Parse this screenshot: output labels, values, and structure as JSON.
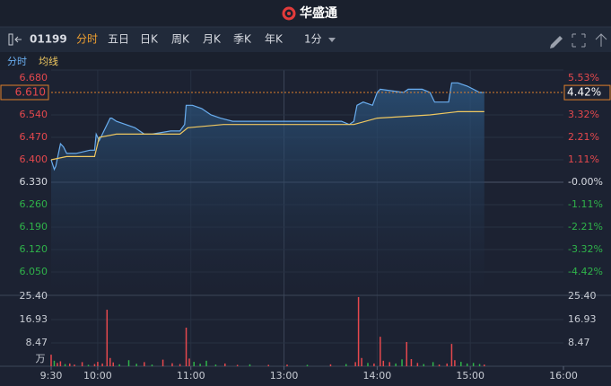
{
  "header": {
    "brand": "华盛通"
  },
  "toolbar": {
    "code": "01199",
    "tabs": [
      "分时",
      "五日",
      "日K",
      "周K",
      "月K",
      "季K",
      "年K"
    ],
    "interval": "1分"
  },
  "chart_data": [
    {
      "type": "line",
      "xlim": [
        0,
        330
      ],
      "ylim": [
        5.98,
        6.68
      ],
      "yticks": [
        {
          "value": 6.68,
          "label": "6.680"
        },
        {
          "value": 6.54,
          "label": "6.540"
        },
        {
          "value": 6.47,
          "label": "6.470"
        },
        {
          "value": 6.4,
          "label": "6.400"
        },
        {
          "value": 6.33,
          "label": "6.330"
        },
        {
          "value": 6.26,
          "label": "6.260"
        },
        {
          "value": 6.19,
          "label": "6.190"
        },
        {
          "value": 6.12,
          "label": "6.120"
        },
        {
          "value": 6.05,
          "label": "6.050"
        }
      ],
      "y2lim": [
        -5.53,
        5.53
      ],
      "y2ticks": [
        {
          "value": 5.53,
          "label": "5.53%"
        },
        {
          "value": 3.32,
          "label": "3.32%"
        },
        {
          "value": 2.21,
          "label": "2.21%"
        },
        {
          "value": 1.11,
          "label": "1.11%"
        },
        {
          "value": 0,
          "label": "-0.00%"
        },
        {
          "value": -1.11,
          "label": "-1.11%"
        },
        {
          "value": -2.21,
          "label": "-2.21%"
        },
        {
          "value": -3.32,
          "label": "-3.32%"
        },
        {
          "value": -4.42,
          "label": "-4.42%"
        }
      ],
      "last": {
        "value": 6.61,
        "label": "6.610"
      },
      "last_change": {
        "value": 4.42,
        "label": "4.42%"
      },
      "grid": true,
      "series": [
        {
          "name": "分时",
          "color": "#6aaef0",
          "x": [
            0,
            2,
            3,
            6,
            8,
            10,
            16,
            25,
            28,
            29,
            31,
            34,
            38,
            39,
            42,
            48,
            54,
            60,
            65,
            77,
            83,
            86,
            87,
            91,
            97,
            103,
            109,
            117,
            135,
            150,
            170,
            187,
            192,
            195,
            197,
            201,
            207,
            210,
            212,
            227,
            230,
            239,
            244,
            247,
            256,
            258,
            262,
            268,
            272,
            276,
            279
          ],
          "values": [
            6.4,
            6.37,
            6.38,
            6.45,
            6.44,
            6.42,
            6.42,
            6.43,
            6.43,
            6.48,
            6.46,
            6.49,
            6.53,
            6.53,
            6.52,
            6.51,
            6.5,
            6.48,
            6.48,
            6.49,
            6.49,
            6.51,
            6.57,
            6.57,
            6.56,
            6.54,
            6.53,
            6.52,
            6.52,
            6.52,
            6.52,
            6.52,
            6.51,
            6.52,
            6.57,
            6.58,
            6.57,
            6.61,
            6.62,
            6.61,
            6.62,
            6.62,
            6.61,
            6.58,
            6.58,
            6.64,
            6.64,
            6.63,
            6.62,
            6.61,
            6.61
          ]
        },
        {
          "name": "均线",
          "color": "#f0c860",
          "x": [
            0,
            10,
            28,
            31,
            42,
            83,
            88,
            111,
            152,
            195,
            210,
            244,
            262,
            279
          ],
          "values": [
            6.4,
            6.41,
            6.41,
            6.47,
            6.48,
            6.48,
            6.5,
            6.51,
            6.51,
            6.51,
            6.53,
            6.54,
            6.55,
            6.55
          ]
        }
      ]
    },
    {
      "type": "bar",
      "unit": "万",
      "xlim": [
        0,
        330
      ],
      "xticks": [
        {
          "value": 0,
          "label": "9:30"
        },
        {
          "value": 30,
          "label": "10:00"
        },
        {
          "value": 90,
          "label": "11:00"
        },
        {
          "value": 150,
          "label": "13:00"
        },
        {
          "value": 210,
          "label": "14:00"
        },
        {
          "value": 270,
          "label": "15:00"
        },
        {
          "value": 330,
          "label": "16:00"
        }
      ],
      "ylim": [
        0,
        25.4
      ],
      "yticks": [
        {
          "value": 25.4,
          "label": "25.40"
        },
        16.93,
        8.47
      ],
      "x": [
        0,
        2,
        4,
        6,
        9,
        12,
        15,
        20,
        24,
        28,
        30,
        33,
        36,
        38,
        40,
        44,
        50,
        55,
        60,
        65,
        72,
        78,
        83,
        87,
        89,
        92,
        96,
        100,
        106,
        112,
        120,
        128,
        140,
        152,
        165,
        180,
        190,
        196,
        198,
        200,
        204,
        208,
        212,
        214,
        218,
        222,
        226,
        229,
        232,
        236,
        240,
        246,
        250,
        255,
        258,
        260,
        264,
        268,
        272,
        276,
        279
      ],
      "values": [
        4.2,
        2,
        1.2,
        1.8,
        0.8,
        1,
        0.6,
        1.5,
        0.5,
        0.8,
        1.6,
        1,
        20.5,
        3,
        1.4,
        0.7,
        2.2,
        0.9,
        1.5,
        0.6,
        2.4,
        1.1,
        0.8,
        14,
        2.8,
        1.6,
        0.9,
        2,
        0.6,
        1,
        0.5,
        0.7,
        0.5,
        0.6,
        0.5,
        0.7,
        0.8,
        1.5,
        25.1,
        3,
        1.2,
        1,
        10.7,
        2,
        1.5,
        1,
        2.5,
        8.8,
        2.6,
        1.2,
        0.8,
        1.5,
        0.6,
        1,
        8.1,
        2.2,
        1.6,
        1,
        1.2,
        0.8,
        0.6
      ],
      "colors": [
        "#e5484d",
        "#2fb34a",
        "#e5484d",
        "#e5484d",
        "#2fb34a",
        "#e5484d",
        "#e5484d",
        "#e5484d",
        "#2fb34a",
        "#e5484d",
        "#e5484d",
        "#e5484d",
        "#e5484d",
        "#e5484d",
        "#e5484d",
        "#2fb34a",
        "#2fb34a",
        "#2fb34a",
        "#e5484d",
        "#2fb34a",
        "#e5484d",
        "#e5484d",
        "#e5484d",
        "#e5484d",
        "#e5484d",
        "#2fb34a",
        "#2fb34a",
        "#2fb34a",
        "#2fb34a",
        "#e5484d",
        "#e5484d",
        "#2fb34a",
        "#e5484d",
        "#e5484d",
        "#2fb34a",
        "#e5484d",
        "#2fb34a",
        "#e5484d",
        "#e5484d",
        "#e5484d",
        "#2fb34a",
        "#e5484d",
        "#e5484d",
        "#e5484d",
        "#e5484d",
        "#2fb34a",
        "#2fb34a",
        "#e5484d",
        "#e5484d",
        "#e5484d",
        "#2fb34a",
        "#2fb34a",
        "#e5484d",
        "#e5484d",
        "#e5484d",
        "#e5484d",
        "#2fb34a",
        "#2fb34a",
        "#2fb34a",
        "#2fb34a",
        "#e5484d"
      ]
    }
  ]
}
